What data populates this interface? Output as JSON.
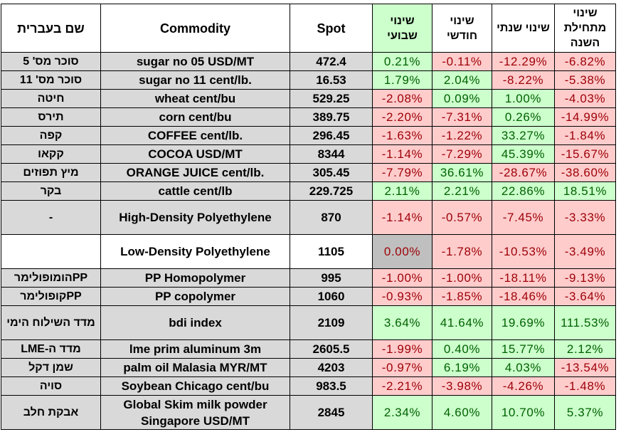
{
  "header": {
    "hebrew_name": "שם בעברית",
    "commodity": "Commodity",
    "spot": "Spot",
    "weekly": "שינוי שבועי",
    "monthly": "שינוי חודשי",
    "yearly": "שינוי שנתי",
    "ytd": "שינוי מתחילת השנה"
  },
  "rows": [
    {
      "heb": "סוכר מס' 5",
      "com": "sugar no 05 USD/MT",
      "spot": "472.4",
      "w": "0.21%",
      "m": "-0.11%",
      "y": "-12.29%",
      "ytd": "-6.82%"
    },
    {
      "heb": "סוכר מס' 11",
      "com": "sugar no 11 cent/lb.",
      "spot": "16.53",
      "w": "1.79%",
      "m": "2.04%",
      "y": "-8.22%",
      "ytd": "-5.38%"
    },
    {
      "heb": "חיטה",
      "com": "wheat cent/bu",
      "spot": "529.25",
      "w": "-2.08%",
      "m": "0.09%",
      "y": "1.00%",
      "ytd": "-4.03%"
    },
    {
      "heb": "תירס",
      "com": "corn cent/bu",
      "spot": "389.75",
      "w": "-2.20%",
      "m": "-7.31%",
      "y": "0.26%",
      "ytd": "-14.99%"
    },
    {
      "heb": "קפה",
      "com": "COFFEE cent/lb.",
      "spot": "296.45",
      "w": "-1.63%",
      "m": "-1.22%",
      "y": "33.27%",
      "ytd": "-1.84%"
    },
    {
      "heb": "קקאו",
      "com": "COCOA USD/MT",
      "spot": "8344",
      "w": "-1.14%",
      "m": "-7.29%",
      "y": "45.39%",
      "ytd": "-15.67%"
    },
    {
      "heb": "מיץ תפוזים",
      "com": "ORANGE JUICE cent/lb.",
      "spot": "305.45",
      "w": "-7.79%",
      "m": "36.61%",
      "y": "-28.67%",
      "ytd": "-38.60%"
    },
    {
      "heb": "בקר",
      "com": "cattle cent/lb",
      "spot": "229.725",
      "w": "2.11%",
      "m": "2.21%",
      "y": "22.86%",
      "ytd": "18.51%"
    },
    {
      "heb": "-",
      "com": "High-Density Polyethylene",
      "spot": "870",
      "w": "-1.14%",
      "m": "-0.57%",
      "y": "-7.45%",
      "ytd": "-3.33%"
    },
    {
      "heb": "",
      "com": "Low-Density Polyethylene",
      "spot": "1105",
      "w": "0.00%",
      "m": "-1.78%",
      "y": "-10.53%",
      "ytd": "-3.49%"
    },
    {
      "heb": "PPהומופולימר",
      "com": "PP Homopolymer",
      "spot": "995",
      "w": "-1.00%",
      "m": "-1.00%",
      "y": "-18.11%",
      "ytd": "-9.13%"
    },
    {
      "heb": "PPקופולימר",
      "com": "PP copolymer",
      "spot": "1060",
      "w": "-0.93%",
      "m": "-1.85%",
      "y": "-18.46%",
      "ytd": "-3.64%"
    },
    {
      "heb": "מדד השילוח הימי",
      "com": "bdi index",
      "spot": "2109",
      "w": "3.64%",
      "m": "41.64%",
      "y": "19.69%",
      "ytd": "111.53%"
    },
    {
      "heb": "מדד ה-LME",
      "com": "lme prim aluminum 3m",
      "spot": "2605.5",
      "w": "-1.99%",
      "m": "0.40%",
      "y": "15.77%",
      "ytd": "2.12%"
    },
    {
      "heb": "שמן דקל",
      "com": "palm oil Malasia MYR/MT",
      "spot": "4203",
      "w": "-0.97%",
      "m": "6.19%",
      "y": "4.03%",
      "ytd": "-13.54%"
    },
    {
      "heb": "סויה",
      "com": "Soybean Chicago cent/bu",
      "spot": "983.5",
      "w": "-2.21%",
      "m": "-3.98%",
      "y": "-4.26%",
      "ytd": "-1.48%"
    },
    {
      "heb": "אבקת חלב",
      "com": "Global Skim milk powder Singapore USD/MT",
      "spot": "2845",
      "w": "2.34%",
      "m": "4.60%",
      "y": "10.70%",
      "ytd": "5.37%"
    }
  ],
  "colors": {
    "positive_bg": "#ccffcc",
    "positive_text": "#006100",
    "negative_bg": "#ffcccc",
    "negative_text": "#9c0006",
    "zero_bg": "#bfbfbf",
    "row_grey": "#d9d9d9"
  }
}
